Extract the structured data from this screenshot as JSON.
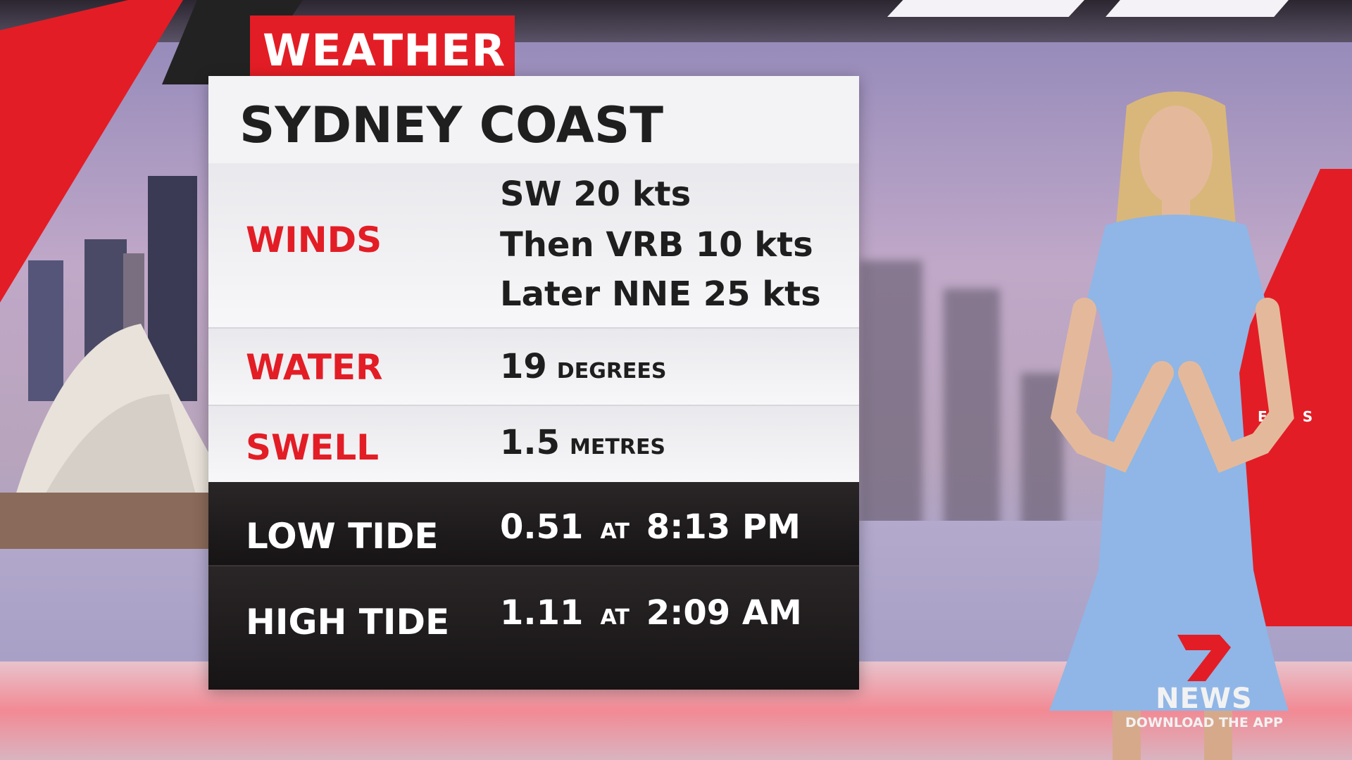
{
  "header": {
    "tag": "WEATHER",
    "title": "SYDNEY COAST"
  },
  "rows": [
    {
      "label": "WINDS",
      "values": [
        "SW 20 kts",
        "Then VRB 10 kts",
        "Later NNE 25 kts"
      ]
    },
    {
      "label": "WATER",
      "value": "19",
      "unit": "DEGREES"
    },
    {
      "label": "SWELL",
      "value": "1.5",
      "unit": "METRES"
    },
    {
      "label": "LOW TIDE",
      "value": "0.51",
      "at": "AT",
      "time": "8:13 PM"
    },
    {
      "label": "HIGH TIDE",
      "value": "1.11",
      "at": "AT",
      "time": "2:09 AM"
    }
  ],
  "logo": {
    "mark": "7",
    "name": "NEWS",
    "tagline": "DOWNLOAD THE APP"
  },
  "backdrop_text": "EWS",
  "colors": {
    "brand_red": "#e31d25",
    "board_dark": "#1f1b1c",
    "board_light": "#f3f3f5",
    "dress_blue": "#8fb6e6"
  }
}
